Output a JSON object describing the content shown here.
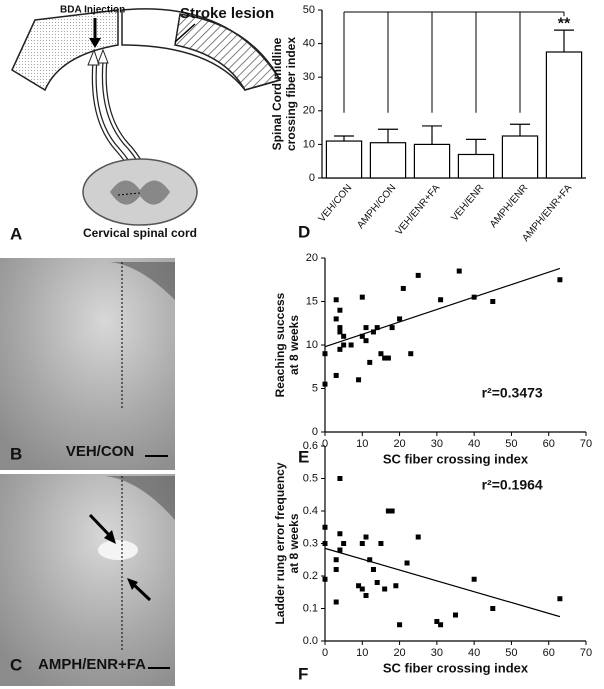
{
  "chart_data": [
    {
      "type": "bar",
      "ylabel": [
        "Spinal Cord midline",
        "crossing fiber index"
      ],
      "categories": [
        "VEH/CON",
        "AMPH/CON",
        "VEH/ENR+FA",
        "VEH/ENR",
        "AMPH/ENR",
        "AMPH/ENR+FA"
      ],
      "values": [
        11,
        10.5,
        10,
        7,
        12.5,
        37.5
      ],
      "errors": [
        1.5,
        4,
        5.5,
        4.5,
        3.5,
        6.5
      ],
      "color": "#ffffff",
      "ylim": [
        0,
        50
      ],
      "yticks": [
        0,
        10,
        20,
        30,
        40,
        50
      ],
      "annotation": "**"
    },
    {
      "type": "scatter",
      "xlabel": "SC fiber crossing index",
      "ylabel": [
        "Reaching success",
        "at 8 weeks"
      ],
      "x": [
        0,
        0,
        3,
        3,
        3,
        4,
        4,
        4,
        4,
        5,
        5,
        7,
        9,
        10,
        10,
        11,
        11,
        12,
        13,
        14,
        15,
        16,
        17,
        18,
        20,
        21,
        23,
        25,
        31,
        36,
        40,
        45,
        63
      ],
      "y": [
        5.5,
        9,
        6.5,
        15.2,
        13,
        14,
        11.5,
        12,
        9.5,
        11,
        10,
        10,
        6,
        15.5,
        11,
        12,
        10.5,
        8,
        11.5,
        12,
        9,
        8.5,
        8.5,
        12,
        13,
        16.5,
        9,
        18,
        15.2,
        18.5,
        15.5,
        15,
        17.5
      ],
      "color": "#000000",
      "trendline": {
        "x": [
          0,
          63
        ],
        "y": [
          9.8,
          18.8
        ]
      },
      "annotation": "r²=0.3473",
      "xlim": [
        0,
        70
      ],
      "xticks": [
        0,
        10,
        20,
        30,
        40,
        50,
        60,
        70
      ],
      "ylim": [
        0,
        20
      ],
      "yticks": [
        0,
        5,
        10,
        15,
        20
      ]
    },
    {
      "type": "scatter",
      "xlabel": "SC fiber crossing index",
      "ylabel": [
        "Ladder rung error frequency",
        "at 8 weeks"
      ],
      "x": [
        0,
        0,
        0,
        3,
        3,
        3,
        4,
        4,
        4,
        5,
        9,
        10,
        10,
        11,
        11,
        12,
        13,
        14,
        15,
        16,
        17,
        18,
        19,
        20,
        22,
        25,
        30,
        31,
        35,
        40,
        45,
        63
      ],
      "y": [
        0.35,
        0.3,
        0.19,
        0.25,
        0.22,
        0.12,
        0.5,
        0.33,
        0.28,
        0.3,
        0.17,
        0.3,
        0.16,
        0.32,
        0.14,
        0.25,
        0.22,
        0.18,
        0.3,
        0.16,
        0.4,
        0.4,
        0.17,
        0.05,
        0.24,
        0.32,
        0.06,
        0.05,
        0.08,
        0.19,
        0.1,
        0.13
      ],
      "color": "#000000",
      "trendline": {
        "x": [
          0,
          63
        ],
        "y": [
          0.285,
          0.075
        ]
      },
      "annotation": "r²=0.1964",
      "xlim": [
        0,
        70
      ],
      "xticks": [
        0,
        10,
        20,
        30,
        40,
        50,
        60,
        70
      ],
      "ylim": [
        0,
        0.6
      ],
      "yticks": [
        {
          "value": 0,
          "label": "0.0"
        },
        0.1,
        0.2,
        0.3,
        0.4,
        0.5,
        0.6
      ]
    }
  ],
  "diagram": {
    "injection": "BDA Injection",
    "lesion": "Stroke lesion",
    "cord": "Cervical spinal cord"
  },
  "images": [
    {
      "label": "VEH/CON"
    },
    {
      "label": "AMPH/ENR+FA"
    }
  ],
  "panel_labels": [
    "A",
    "B",
    "C",
    "D",
    "E",
    "F"
  ]
}
